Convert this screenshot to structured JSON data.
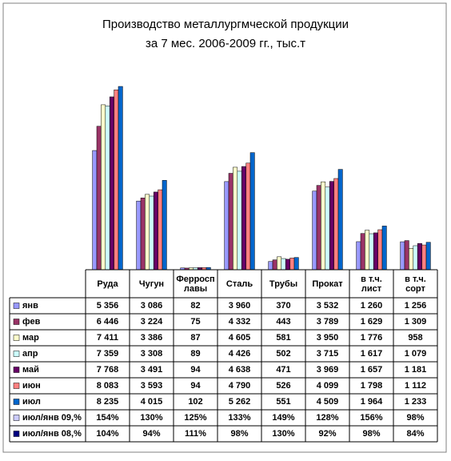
{
  "chart_data": {
    "type": "bar",
    "title": "Производство металлургмческой продукции",
    "subtitle": "за 7 мес. 2006-2009 гг., тыс.т",
    "categories": [
      "Руда",
      "Чугун",
      "Ферросплавы",
      "Сталь",
      "Трубы",
      "Прокат",
      "в т.ч. лист",
      "в т.ч. сорт"
    ],
    "series": [
      {
        "name": "янв",
        "color": "#9999ff",
        "values": [
          5356,
          3086,
          82,
          3960,
          370,
          3532,
          1260,
          1256
        ],
        "value_labels": [
          "5 356",
          "3 086",
          "82",
          "3 960",
          "370",
          "3 532",
          "1 260",
          "1 256"
        ]
      },
      {
        "name": "фев",
        "color": "#993366",
        "values": [
          6446,
          3224,
          75,
          4332,
          443,
          3789,
          1629,
          1309
        ],
        "value_labels": [
          "6 446",
          "3 224",
          "75",
          "4 332",
          "443",
          "3 789",
          "1 629",
          "1 309"
        ]
      },
      {
        "name": "мар",
        "color": "#ffffcc",
        "values": [
          7411,
          3386,
          87,
          4605,
          581,
          3950,
          1776,
          958
        ],
        "value_labels": [
          "7 411",
          "3 386",
          "87",
          "4 605",
          "581",
          "3 950",
          "1 776",
          "958"
        ]
      },
      {
        "name": "апр",
        "color": "#ccffff",
        "values": [
          7359,
          3308,
          89,
          4426,
          502,
          3715,
          1617,
          1079
        ],
        "value_labels": [
          "7 359",
          "3 308",
          "89",
          "4 426",
          "502",
          "3 715",
          "1 617",
          "1 079"
        ]
      },
      {
        "name": "май",
        "color": "#660066",
        "values": [
          7768,
          3491,
          94,
          4638,
          471,
          3969,
          1657,
          1181
        ],
        "value_labels": [
          "7 768",
          "3 491",
          "94",
          "4 638",
          "471",
          "3 969",
          "1 657",
          "1 181"
        ]
      },
      {
        "name": "июн",
        "color": "#ff8080",
        "values": [
          8083,
          3593,
          94,
          4790,
          526,
          4099,
          1798,
          1112
        ],
        "value_labels": [
          "8 083",
          "3 593",
          "94",
          "4 790",
          "526",
          "4 099",
          "1 798",
          "1 112"
        ]
      },
      {
        "name": "июл",
        "color": "#0066cc",
        "values": [
          8235,
          4015,
          102,
          5262,
          551,
          4509,
          1964,
          1233
        ],
        "value_labels": [
          "8 235",
          "4 015",
          "102",
          "5 262",
          "551",
          "4 509",
          "1 964",
          "1 233"
        ]
      }
    ],
    "ratio_rows": [
      {
        "name": "июл/янв 09,%",
        "color": "#ccccff",
        "values": [
          154,
          130,
          125,
          133,
          149,
          128,
          156,
          98
        ],
        "value_labels": [
          "154%",
          "130%",
          "125%",
          "133%",
          "149%",
          "128%",
          "156%",
          "98%"
        ]
      },
      {
        "name": "июл/янв 08,%",
        "color": "#000080",
        "values": [
          104,
          94,
          111,
          98,
          130,
          92,
          98,
          84
        ],
        "value_labels": [
          "104%",
          "94%",
          "111%",
          "98%",
          "130%",
          "92%",
          "98%",
          "84%"
        ]
      }
    ]
  }
}
